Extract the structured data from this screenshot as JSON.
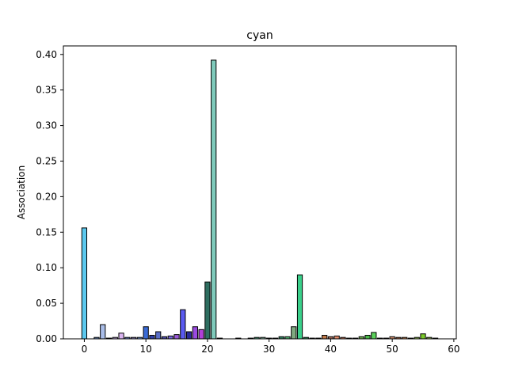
{
  "chart_data": {
    "type": "bar",
    "title": "cyan",
    "xlabel": "",
    "ylabel": "Association",
    "xlim": [
      -3.4,
      60.4
    ],
    "ylim": [
      0,
      0.412
    ],
    "xticks": [
      0,
      10,
      20,
      30,
      40,
      50,
      60
    ],
    "yticks": [
      0.0,
      0.05,
      0.1,
      0.15,
      0.2,
      0.25,
      0.3,
      0.35,
      0.4
    ],
    "ytick_labels": [
      "0.00",
      "0.05",
      "0.10",
      "0.15",
      "0.20",
      "0.25",
      "0.30",
      "0.35",
      "0.40"
    ],
    "grid": false,
    "bars": [
      {
        "x": 0,
        "value": 0.156,
        "color": "#5bc8ee"
      },
      {
        "x": 1,
        "value": 0.0,
        "color": "#7fd2f0"
      },
      {
        "x": 2,
        "value": 0.002,
        "color": "#6b8ec4"
      },
      {
        "x": 3,
        "value": 0.02,
        "color": "#a9bde8"
      },
      {
        "x": 4,
        "value": 0.001,
        "color": "#8888cc"
      },
      {
        "x": 5,
        "value": 0.002,
        "color": "#c0a8e0"
      },
      {
        "x": 6,
        "value": 0.008,
        "color": "#d9b3f0"
      },
      {
        "x": 7,
        "value": 0.002,
        "color": "#6f8fd6"
      },
      {
        "x": 8,
        "value": 0.002,
        "color": "#8a7fbf"
      },
      {
        "x": 9,
        "value": 0.002,
        "color": "#7ba1e8"
      },
      {
        "x": 10,
        "value": 0.017,
        "color": "#3a6bd6"
      },
      {
        "x": 11,
        "value": 0.005,
        "color": "#2f3fa8"
      },
      {
        "x": 12,
        "value": 0.01,
        "color": "#5a6fc8"
      },
      {
        "x": 13,
        "value": 0.003,
        "color": "#4f4fb0"
      },
      {
        "x": 14,
        "value": 0.004,
        "color": "#7a6ae0"
      },
      {
        "x": 15,
        "value": 0.006,
        "color": "#9a5ad8"
      },
      {
        "x": 16,
        "value": 0.041,
        "color": "#5a5af0"
      },
      {
        "x": 17,
        "value": 0.01,
        "color": "#2a2a9a"
      },
      {
        "x": 18,
        "value": 0.017,
        "color": "#9a4ae0"
      },
      {
        "x": 19,
        "value": 0.013,
        "color": "#b040d8"
      },
      {
        "x": 20,
        "value": 0.08,
        "color": "#2e6e60"
      },
      {
        "x": 21,
        "value": 0.392,
        "color": "#7fcabb"
      },
      {
        "x": 22,
        "value": 0.001,
        "color": "#5aaa9a"
      },
      {
        "x": 23,
        "value": 0.0,
        "color": "#4a9a8a"
      },
      {
        "x": 24,
        "value": 0.0,
        "color": "#6ab0a0"
      },
      {
        "x": 25,
        "value": 0.001,
        "color": "#3a8a7a"
      },
      {
        "x": 26,
        "value": 0.0,
        "color": "#5a9a8a"
      },
      {
        "x": 27,
        "value": 0.001,
        "color": "#6fae8f"
      },
      {
        "x": 28,
        "value": 0.002,
        "color": "#4f9f7f"
      },
      {
        "x": 29,
        "value": 0.002,
        "color": "#8fbfa8"
      },
      {
        "x": 30,
        "value": 0.001,
        "color": "#3f8f6f"
      },
      {
        "x": 31,
        "value": 0.001,
        "color": "#5faf8f"
      },
      {
        "x": 32,
        "value": 0.003,
        "color": "#2f7f5f"
      },
      {
        "x": 33,
        "value": 0.003,
        "color": "#4faf6f"
      },
      {
        "x": 34,
        "value": 0.017,
        "color": "#7faa7f"
      },
      {
        "x": 35,
        "value": 0.09,
        "color": "#3acf8a"
      },
      {
        "x": 36,
        "value": 0.002,
        "color": "#2f8f5f"
      },
      {
        "x": 37,
        "value": 0.001,
        "color": "#6fbf8f"
      },
      {
        "x": 38,
        "value": 0.001,
        "color": "#8f9f6f"
      },
      {
        "x": 39,
        "value": 0.005,
        "color": "#c07a4a"
      },
      {
        "x": 40,
        "value": 0.003,
        "color": "#a06a5a"
      },
      {
        "x": 41,
        "value": 0.004,
        "color": "#e08a6a"
      },
      {
        "x": 42,
        "value": 0.002,
        "color": "#d07a5a"
      },
      {
        "x": 43,
        "value": 0.001,
        "color": "#9aaa6a"
      },
      {
        "x": 44,
        "value": 0.001,
        "color": "#7a9a5a"
      },
      {
        "x": 45,
        "value": 0.003,
        "color": "#6aaa4a"
      },
      {
        "x": 46,
        "value": 0.005,
        "color": "#4aba4a"
      },
      {
        "x": 47,
        "value": 0.009,
        "color": "#5ad05a"
      },
      {
        "x": 48,
        "value": 0.001,
        "color": "#8aba6a"
      },
      {
        "x": 49,
        "value": 0.001,
        "color": "#aa8a5a"
      },
      {
        "x": 50,
        "value": 0.003,
        "color": "#ca8a6a"
      },
      {
        "x": 51,
        "value": 0.002,
        "color": "#b06a4a"
      },
      {
        "x": 52,
        "value": 0.002,
        "color": "#d08a5a"
      },
      {
        "x": 53,
        "value": 0.001,
        "color": "#8aaa4a"
      },
      {
        "x": 54,
        "value": 0.002,
        "color": "#9aca5a"
      },
      {
        "x": 55,
        "value": 0.007,
        "color": "#7ac82a"
      },
      {
        "x": 56,
        "value": 0.002,
        "color": "#9aba5a"
      },
      {
        "x": 57,
        "value": 0.001,
        "color": "#aaca6a"
      }
    ]
  }
}
